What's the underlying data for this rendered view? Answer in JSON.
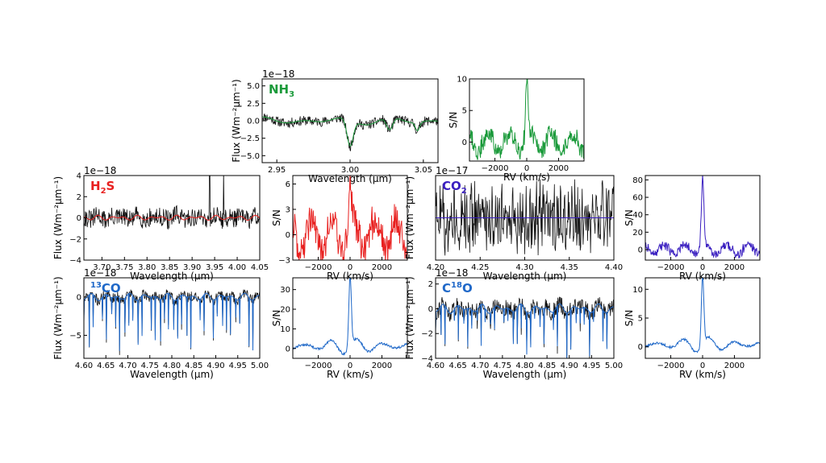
{
  "colors": {
    "nh3": "#1a9a3a",
    "h2s": "#e8201f",
    "co2": "#3a1fc0",
    "co13": "#1f68c8",
    "c18o": "#1f68c8",
    "observed": "#111111"
  },
  "chart_data": [
    {
      "id": "nh3_spec",
      "type": "line",
      "title": "NH",
      "sub": "3",
      "sup": "",
      "offset": "1e−18",
      "xlabel": "Wavelength (μm)",
      "ylabel": "Flux (Wm⁻²μm⁻¹)",
      "xlim": [
        2.94,
        3.06
      ],
      "ylim": [
        -6,
        6
      ],
      "xticks": [
        "2.95",
        "3.00",
        "3.05"
      ],
      "xtick_values": [
        2.95,
        3.0,
        3.05
      ],
      "yticks": [
        "−5.0",
        "−2.5",
        "0.0",
        "2.5",
        "5.0"
      ],
      "ytick_values": [
        -5,
        -2.5,
        0,
        2.5,
        5
      ],
      "color_key": "nh3",
      "seed": 11,
      "noise": 0.7,
      "model_amp": 0.6,
      "features": [
        {
          "x": 3.0,
          "d": 3.8,
          "w": 0.003
        },
        {
          "x": 3.027,
          "d": 1.8,
          "w": 0.003
        },
        {
          "x": 3.046,
          "d": 1.2,
          "w": 0.002
        }
      ]
    },
    {
      "id": "nh3_ccf",
      "type": "line",
      "title": "",
      "ylabel": "S/N",
      "xlabel": "RV (km/s)",
      "xlim": [
        -3600,
        3600
      ],
      "ylim": [
        -3,
        10
      ],
      "xticks": [
        "−2000",
        "0",
        "2000"
      ],
      "xtick_values": [
        -2000,
        0,
        2000
      ],
      "yticks": [
        "0",
        "5",
        "10"
      ],
      "ytick_values": [
        0,
        5,
        10
      ],
      "color_key": "nh3",
      "peak": 9.5,
      "seed": 21,
      "base": 2.5
    },
    {
      "id": "h2s_spec",
      "type": "line",
      "title": "H",
      "sub": "2",
      "sup": "",
      "title_tail": "S",
      "offset": "1e−18",
      "xlabel": "Wavelength (μm)",
      "ylabel": "Flux (Wm⁻²μm⁻¹)",
      "xlim": [
        3.66,
        4.05
      ],
      "ylim": [
        -4,
        4
      ],
      "xticks": [
        "3.70",
        "3.75",
        "3.80",
        "3.85",
        "3.90",
        "3.95",
        "4.00",
        "4.05"
      ],
      "xtick_values": [
        3.7,
        3.75,
        3.8,
        3.85,
        3.9,
        3.95,
        4.0,
        4.05
      ],
      "yticks": [
        "−4",
        "−2",
        "0",
        "2",
        "4"
      ],
      "ytick_values": [
        -4,
        -2,
        0,
        2,
        4
      ],
      "color_key": "h2s",
      "seed": 31,
      "noise": 0.9,
      "model_amp": 0.25,
      "spikes": [
        {
          "x": 3.939,
          "h": 4.6
        },
        {
          "x": 3.97,
          "h": 4.6
        }
      ]
    },
    {
      "id": "h2s_ccf",
      "type": "line",
      "title": "",
      "ylabel": "S/N",
      "xlabel": "RV (km/s)",
      "xlim": [
        -3600,
        3600
      ],
      "ylim": [
        -3,
        7
      ],
      "xticks": [
        "−2000",
        "0",
        "2000"
      ],
      "xtick_values": [
        -2000,
        0,
        2000
      ],
      "yticks": [
        "−3",
        "0",
        "3",
        "6"
      ],
      "ytick_values": [
        -3,
        0,
        3,
        6
      ],
      "color_key": "h2s",
      "peak": 6,
      "seed": 41,
      "base": 3.2
    },
    {
      "id": "co2_spec",
      "type": "line",
      "title": "CO",
      "sub": "2",
      "sup": "",
      "offset": "1e−17",
      "xlabel": "Wavelength (μm)",
      "ylabel": "Flux (Wm⁻²μm⁻¹)",
      "xlim": [
        4.2,
        4.4
      ],
      "ylim": [
        -1,
        1
      ],
      "xticks": [
        "4.20",
        "4.25",
        "4.30",
        "4.35",
        "4.40"
      ],
      "xtick_values": [
        4.2,
        4.25,
        4.3,
        4.35,
        4.4
      ],
      "yticks": [],
      "ytick_values": [],
      "color_key": "co2",
      "seed": 51,
      "noise": 0.35,
      "model_amp": 0.0,
      "model_color_only": true
    },
    {
      "id": "co2_ccf",
      "type": "line",
      "title": "",
      "ylabel": "S/N",
      "xlabel": "RV (km/s)",
      "xlim": [
        -3600,
        3600
      ],
      "ylim": [
        -12,
        85
      ],
      "xticks": [
        "−2000",
        "0",
        "2000"
      ],
      "xtick_values": [
        -2000,
        0,
        2000
      ],
      "yticks": [
        "0",
        "20",
        "40",
        "60",
        "80"
      ],
      "ytick_values": [
        0,
        20,
        40,
        60,
        80
      ],
      "color_key": "co2",
      "peak": 82,
      "seed": 61,
      "base": 9
    },
    {
      "id": "co13_spec",
      "type": "line",
      "title": "CO",
      "sub": "",
      "sup": "13",
      "sup_first": true,
      "offset": "1e−18",
      "xlabel": "Wavelength (μm)",
      "ylabel": "Flux (Wm⁻²μm⁻¹)",
      "xlim": [
        4.6,
        5.0
      ],
      "ylim": [
        -8,
        2.5
      ],
      "xticks": [
        "4.60",
        "4.65",
        "4.70",
        "4.75",
        "4.80",
        "4.85",
        "4.90",
        "4.95",
        "5.00"
      ],
      "xtick_values": [
        4.6,
        4.65,
        4.7,
        4.75,
        4.8,
        4.85,
        4.9,
        4.95,
        5.0
      ],
      "yticks": [
        "−5",
        "0"
      ],
      "ytick_values": [
        -5,
        0
      ],
      "color_key": "co13",
      "seed": 71,
      "noise": 0.7,
      "model_amp": 0.5,
      "comb": true
    },
    {
      "id": "co13_ccf",
      "type": "line",
      "title": "",
      "ylabel": "S/N",
      "xlabel": "RV (km/s)",
      "xlim": [
        -3600,
        3600
      ],
      "ylim": [
        -5,
        36
      ],
      "xticks": [
        "−2000",
        "0",
        "2000"
      ],
      "xtick_values": [
        -2000,
        0,
        2000
      ],
      "yticks": [
        "0",
        "10",
        "20",
        "30"
      ],
      "ytick_values": [
        0,
        10,
        20,
        30
      ],
      "color_key": "co13",
      "peak": 36,
      "seed": 81,
      "base": 4,
      "oscill": true
    },
    {
      "id": "c18o_spec",
      "type": "line",
      "title": "C",
      "sub": "",
      "sup": "18",
      "title_tail": "O",
      "offset": "1e−18",
      "xlabel": "Wavelength (μm)",
      "ylabel": "Flux (Wm⁻²μm⁻¹)",
      "xlim": [
        4.6,
        5.0
      ],
      "ylim": [
        -4,
        2.5
      ],
      "xticks": [
        "4.60",
        "4.65",
        "4.70",
        "4.75",
        "4.80",
        "4.85",
        "4.90",
        "4.95",
        "5.00"
      ],
      "xtick_values": [
        4.6,
        4.65,
        4.7,
        4.75,
        4.8,
        4.85,
        4.9,
        4.95,
        5.0
      ],
      "yticks": [
        "−4",
        "−2",
        "0",
        "2"
      ],
      "ytick_values": [
        -4,
        -2,
        0,
        2
      ],
      "color_key": "c18o",
      "seed": 91,
      "noise": 0.7,
      "model_amp": 0.4,
      "comb": true
    },
    {
      "id": "c18o_ccf",
      "type": "line",
      "title": "",
      "ylabel": "S/N",
      "xlabel": "RV (km/s)",
      "xlim": [
        -3600,
        3600
      ],
      "ylim": [
        -2,
        12
      ],
      "xticks": [
        "−2000",
        "0",
        "2000"
      ],
      "xtick_values": [
        -2000,
        0,
        2000
      ],
      "yticks": [
        "0",
        "5",
        "10"
      ],
      "ytick_values": [
        0,
        5,
        10
      ],
      "color_key": "c18o",
      "peak": 12,
      "seed": 101,
      "base": 1.3,
      "oscill": true
    }
  ]
}
